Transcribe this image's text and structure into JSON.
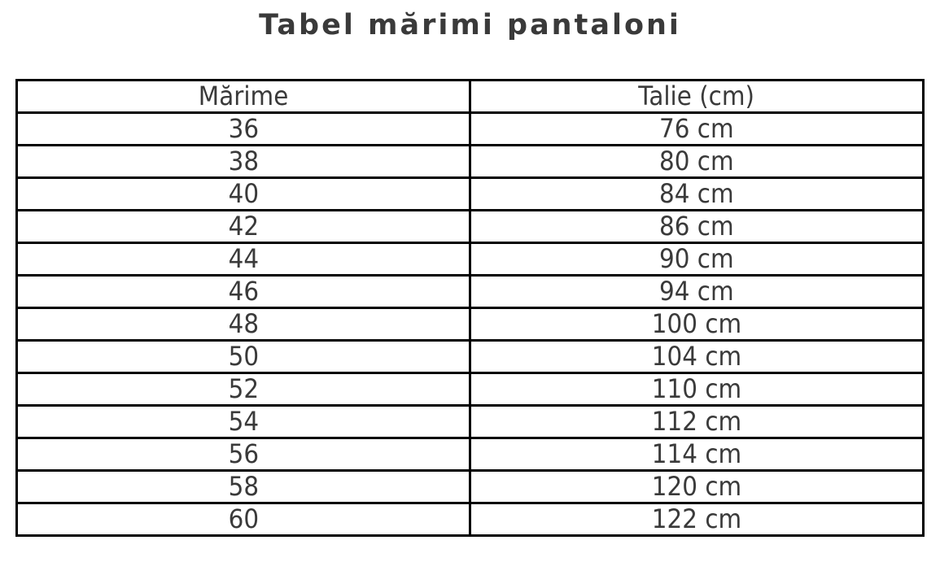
{
  "title": "Tabel mărimi pantaloni",
  "table": {
    "headers": [
      "Mărime",
      "Talie (cm)"
    ],
    "rows": [
      {
        "marime": "36",
        "talie": "76 cm"
      },
      {
        "marime": "38",
        "talie": "80 cm"
      },
      {
        "marime": "40",
        "talie": "84 cm"
      },
      {
        "marime": "42",
        "talie": "86 cm"
      },
      {
        "marime": "44",
        "talie": "90 cm"
      },
      {
        "marime": "46",
        "talie": "94 cm"
      },
      {
        "marime": "48",
        "talie": "100 cm"
      },
      {
        "marime": "50",
        "talie": "104 cm"
      },
      {
        "marime": "52",
        "talie": "110 cm"
      },
      {
        "marime": "54",
        "talie": "112 cm"
      },
      {
        "marime": "56",
        "talie": "114 cm"
      },
      {
        "marime": "58",
        "talie": "120 cm"
      },
      {
        "marime": "60",
        "talie": "122 cm"
      }
    ]
  },
  "colors": {
    "background": "#ffffff",
    "text": "#3a3a3a",
    "border": "#000000"
  },
  "chart_data": {
    "type": "table",
    "title": "Tabel mărimi pantaloni",
    "columns": [
      "Mărime",
      "Talie (cm)"
    ],
    "marime": [
      36,
      38,
      40,
      42,
      44,
      46,
      48,
      50,
      52,
      54,
      56,
      58,
      60
    ],
    "talie_cm": [
      76,
      80,
      84,
      86,
      90,
      94,
      100,
      104,
      110,
      112,
      114,
      120,
      122
    ],
    "layout": {
      "header_row": true,
      "columns_alignment": "center",
      "border_style": "solid black grid"
    }
  }
}
